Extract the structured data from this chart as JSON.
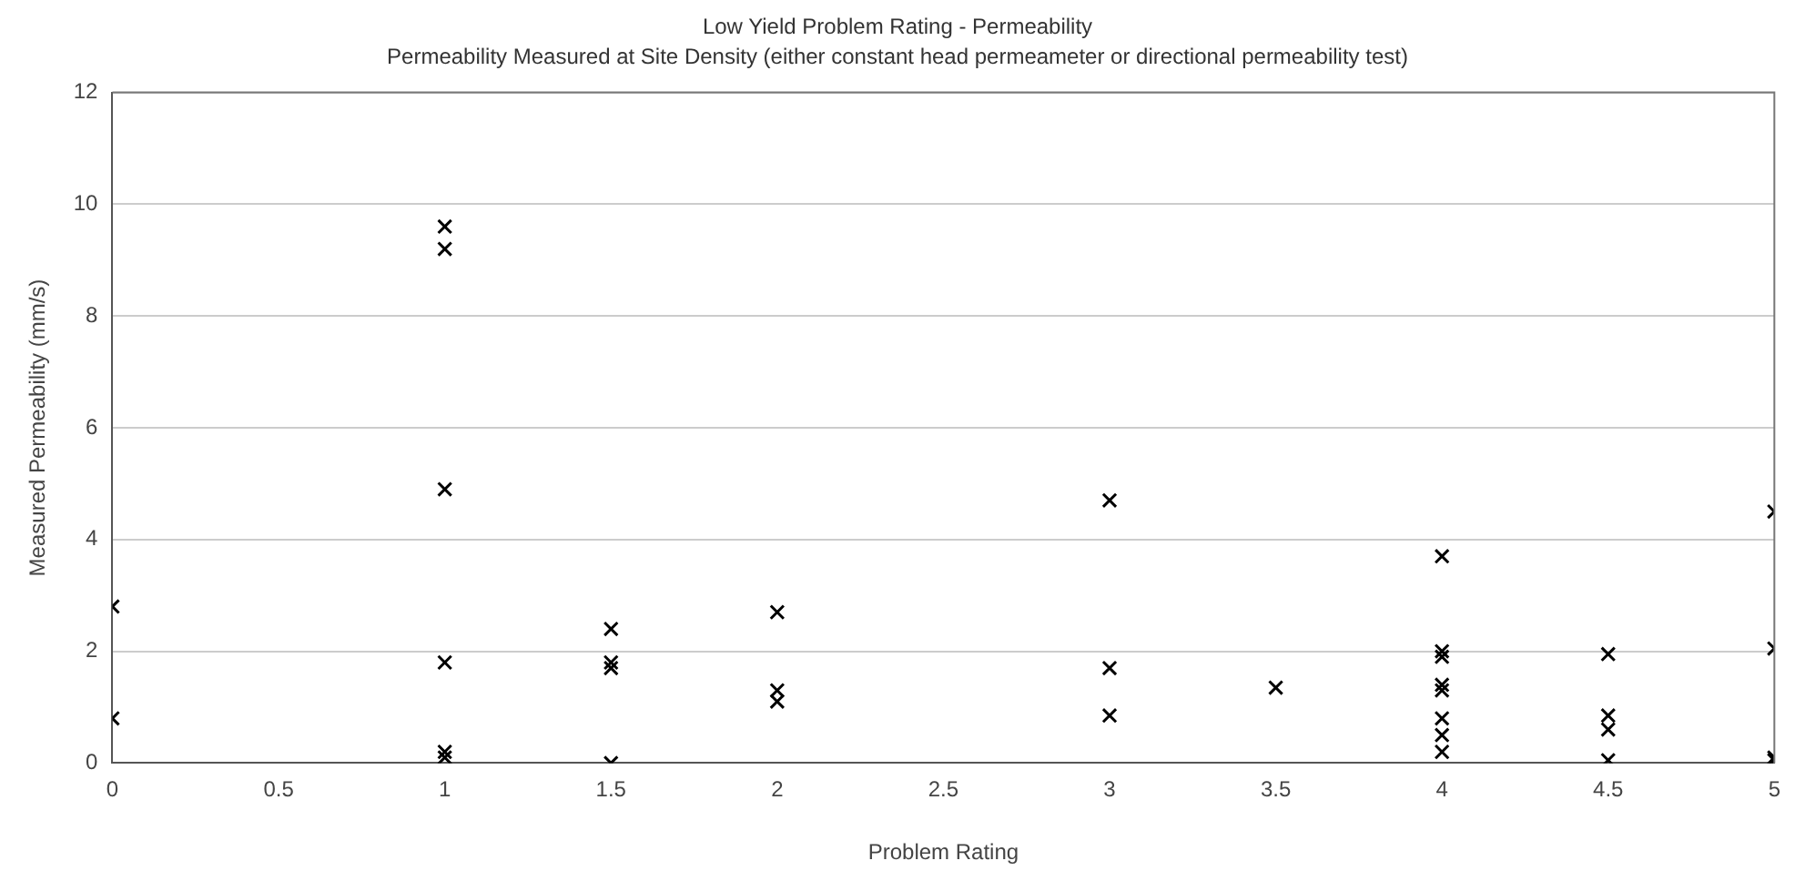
{
  "chart_data": {
    "type": "scatter",
    "title": "Low Yield Problem Rating - Permeability",
    "subtitle": "Permeability Measured at Site Density (either constant head permeameter or directional permeability test)",
    "xlabel": "Problem Rating",
    "ylabel": "Measured Permeability (mm/s)",
    "series": [
      {
        "color": "#000000",
        "x": [
          0,
          0,
          1,
          1,
          1,
          1,
          1,
          1,
          1.5,
          1.5,
          1.5,
          1.5,
          2,
          2,
          2,
          3,
          3,
          3,
          3.5,
          4,
          4,
          4,
          4,
          4,
          4,
          4,
          4,
          4.5,
          4.5,
          4.5,
          4.5,
          5,
          5,
          5,
          5
        ],
        "values": [
          2.8,
          0.8,
          9.6,
          9.2,
          4.9,
          1.8,
          0.2,
          0.1,
          2.4,
          1.8,
          1.7,
          0,
          2.7,
          1.3,
          1.1,
          4.7,
          1.7,
          0.85,
          1.35,
          3.7,
          2,
          1.9,
          1.4,
          1.3,
          0.8,
          0.5,
          0.2,
          1.95,
          0.85,
          0.6,
          0.05,
          4.5,
          2.05,
          0.1,
          0.05
        ]
      }
    ],
    "xlim": [
      0,
      5
    ],
    "xticks": [
      0,
      0.5,
      1,
      1.5,
      2,
      2.5,
      3,
      3.5,
      4,
      4.5,
      5
    ],
    "ylim": [
      0,
      12
    ],
    "yticks": [
      0,
      2,
      4,
      6,
      8,
      10,
      12
    ],
    "grid": "y",
    "legend": false,
    "marker": "cross"
  }
}
